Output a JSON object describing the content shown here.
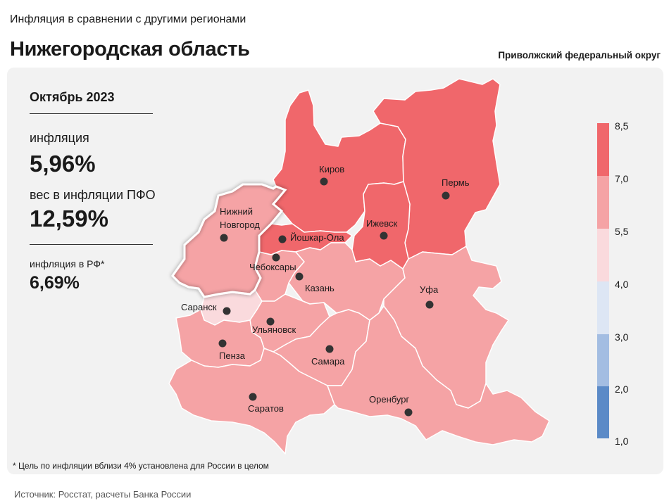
{
  "header": {
    "subtitle": "Инфляция в сравнении с другими регионами",
    "title": "Нижегородская область",
    "district": "Приволжский федеральный округ"
  },
  "info": {
    "period": "Октябрь 2023",
    "inflation_label": "инфляция",
    "inflation_value": "5,96%",
    "weight_label": "вес в инфляции ПФО",
    "weight_value": "12,59%",
    "rf_label": "инфляция в РФ*",
    "rf_value": "6,69%"
  },
  "footnote": "* Цель по инфляции вблизи 4% установлена для России в целом",
  "source": "Источник: Росстат, расчеты Банка России",
  "legend": {
    "ticks": [
      "8,5",
      "7,0",
      "5,5",
      "4,0",
      "3,0",
      "2,0",
      "1,0"
    ],
    "bins": [
      {
        "from": 7.0,
        "to": 8.5,
        "color": "#f0676b"
      },
      {
        "from": 5.5,
        "to": 7.0,
        "color": "#f5a3a5"
      },
      {
        "from": 4.0,
        "to": 5.5,
        "color": "#fadadd"
      },
      {
        "from": 3.0,
        "to": 4.0,
        "color": "#dde6f4"
      },
      {
        "from": 2.0,
        "to": 3.0,
        "color": "#a3bde2"
      },
      {
        "from": 1.0,
        "to": 2.0,
        "color": "#5b8ac7"
      }
    ]
  },
  "regions": {
    "kirov": {
      "city": "Киров",
      "bin": 7.0
    },
    "perm": {
      "city": "Пермь",
      "bin": 7.0
    },
    "izhevsk": {
      "city": "Ижевск",
      "bin": 7.0
    },
    "yoshkar_ola": {
      "city": "Йошкар-Ола",
      "bin": 7.0
    },
    "nizhny": {
      "city": "Нижний Новгород",
      "bin": 5.5,
      "highlighted": true
    },
    "cheboksary": {
      "city": "Чебоксары",
      "bin": 5.5
    },
    "kazan": {
      "city": "Казань",
      "bin": 5.5
    },
    "ufa": {
      "city": "Уфа",
      "bin": 5.5
    },
    "saransk": {
      "city": "Саранск",
      "bin": 4.0
    },
    "ulyanovsk": {
      "city": "Ульяновск",
      "bin": 5.5
    },
    "penza": {
      "city": "Пенза",
      "bin": 5.5
    },
    "samara": {
      "city": "Самара",
      "bin": 5.5
    },
    "saratov": {
      "city": "Саратов",
      "bin": 5.5
    },
    "orenburg": {
      "city": "Оренбург",
      "bin": 5.5
    }
  },
  "nizhny_label_lines": [
    "Нижний",
    "Новгород"
  ]
}
